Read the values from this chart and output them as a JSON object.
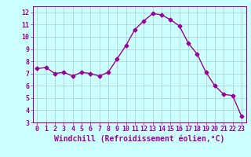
{
  "x": [
    0,
    1,
    2,
    3,
    4,
    5,
    6,
    7,
    8,
    9,
    10,
    11,
    12,
    13,
    14,
    15,
    16,
    17,
    18,
    19,
    20,
    21,
    22,
    23
  ],
  "y": [
    7.4,
    7.5,
    7.0,
    7.1,
    6.8,
    7.1,
    7.0,
    6.8,
    7.1,
    8.2,
    9.3,
    10.6,
    11.3,
    11.9,
    11.8,
    11.4,
    10.9,
    9.5,
    8.6,
    7.1,
    6.0,
    5.3,
    5.2,
    3.5
  ],
  "line_color": "#990099",
  "marker": "D",
  "marker_size": 2.5,
  "background_color": "#ccffff",
  "grid_color": "#aacccc",
  "xlabel": "Windchill (Refroidissement éolien,°C)",
  "xlabel_color": "#990099",
  "xlim": [
    -0.5,
    23.5
  ],
  "ylim": [
    3,
    12.5
  ],
  "yticks": [
    3,
    4,
    5,
    6,
    7,
    8,
    9,
    10,
    11,
    12
  ],
  "xticks": [
    0,
    1,
    2,
    3,
    4,
    5,
    6,
    7,
    8,
    9,
    10,
    11,
    12,
    13,
    14,
    15,
    16,
    17,
    18,
    19,
    20,
    21,
    22,
    23
  ],
  "tick_color": "#990099",
  "tick_label_fontsize": 6,
  "xlabel_fontsize": 7,
  "spine_color": "#990099"
}
